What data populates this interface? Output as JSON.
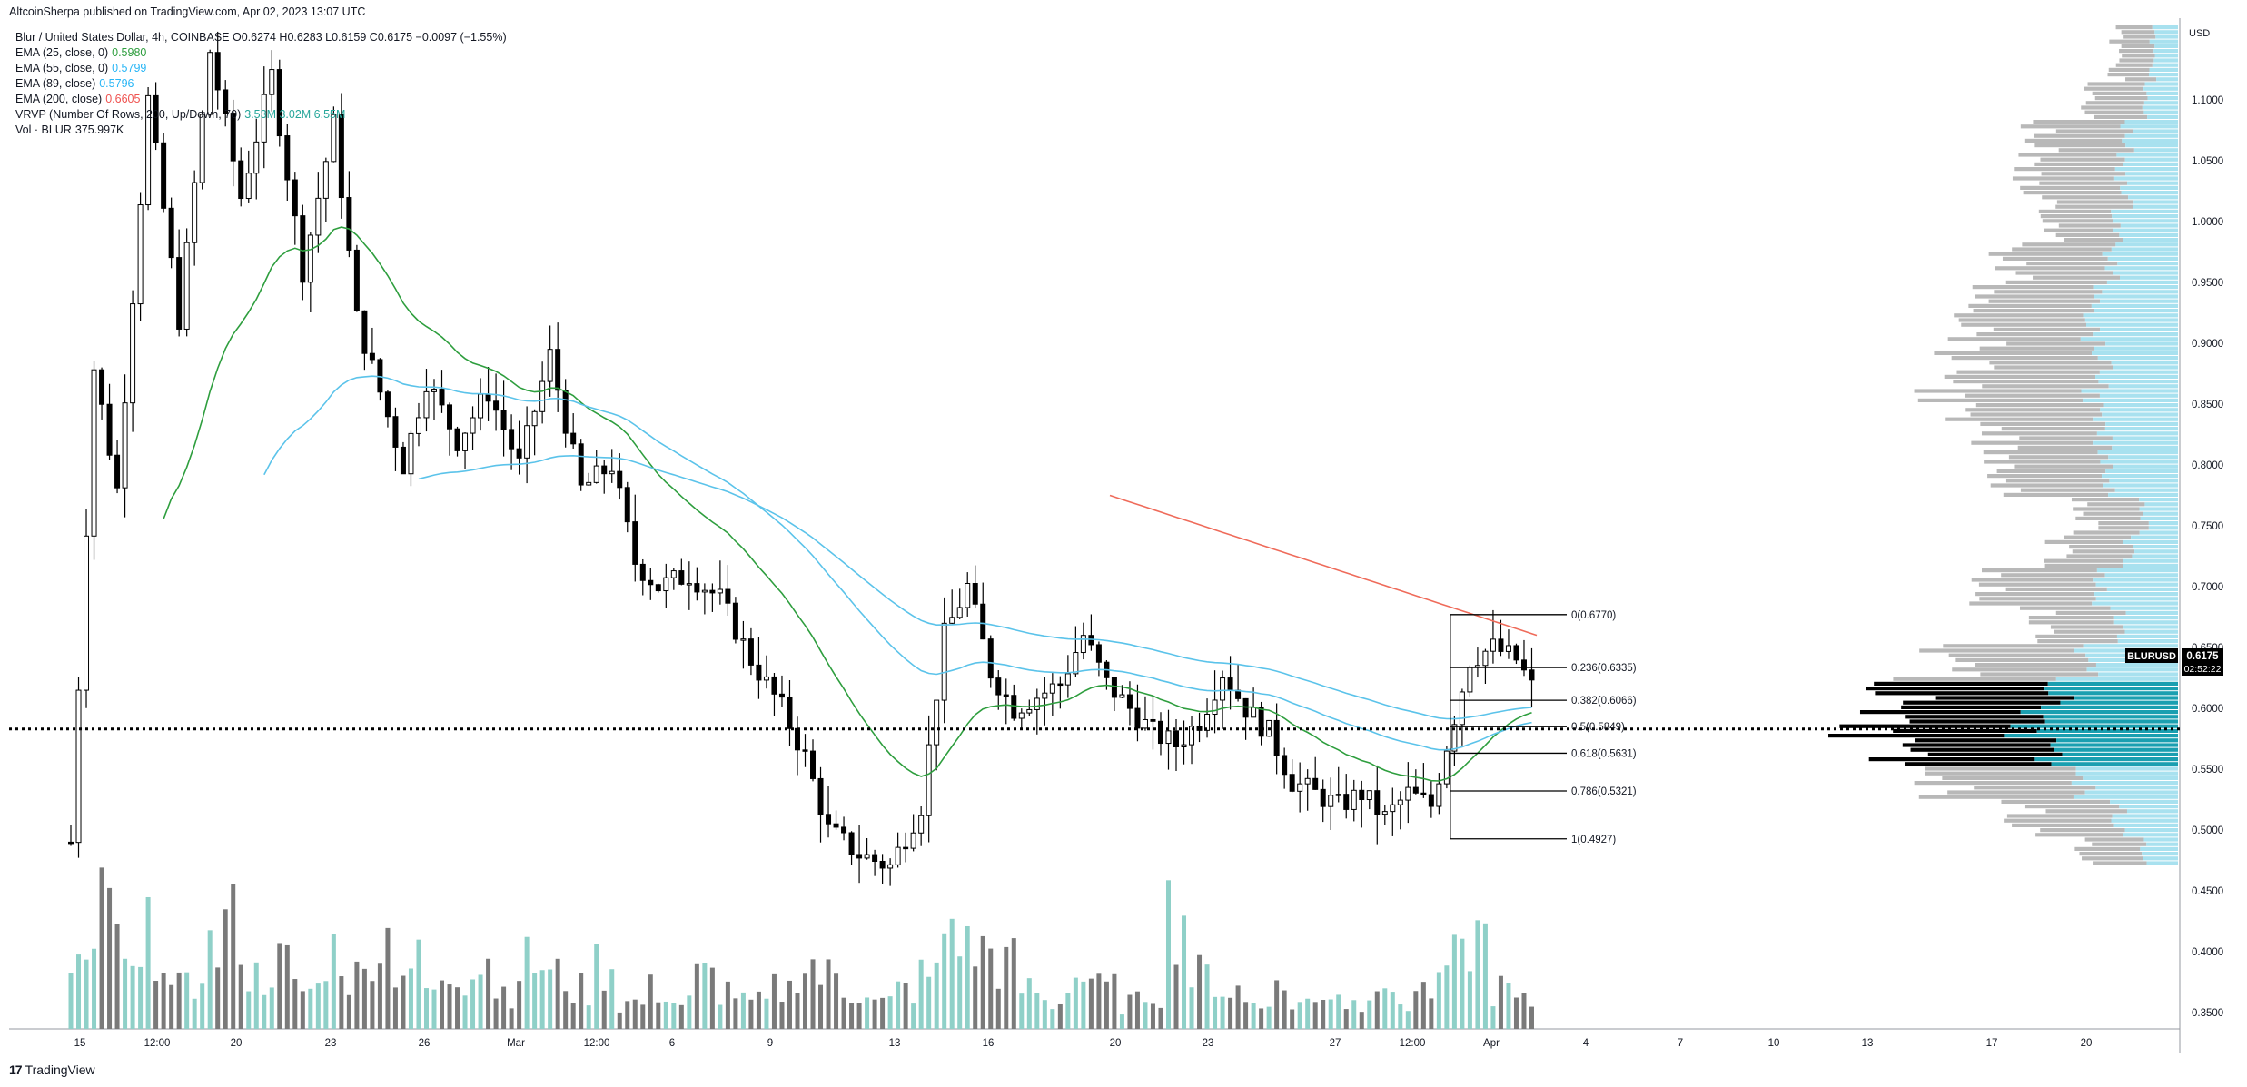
{
  "header": {
    "published": "AltcoinSherpa published on TradingView.com, Apr 02, 2023 13:07 UTC"
  },
  "legend": {
    "symbol_line": "Blur / United States Dollar, 4h, COINBASE O0.6274 H0.6283 L0.6159 C0.6175 −0.0097 (−1.55%)",
    "indicators": [
      {
        "label": "EMA (25, close, 0)",
        "value": "0.5980",
        "color": "#26a69a"
      },
      {
        "label": "EMA (55, close, 0)",
        "value": "0.5799",
        "color": "#29b6f6"
      },
      {
        "label": "EMA (89, close)",
        "value": "0.5796",
        "color": "#29b6f6"
      },
      {
        "label": "EMA (200, close)",
        "value": "0.6605",
        "color": "#ef5350"
      },
      {
        "label": "VRVP (Number Of Rows, 200, Up/Down, 70)",
        "value": "3.53M  3.02M  6.55M",
        "color": "#26a69a"
      },
      {
        "label": "Vol · BLUR",
        "value": "375.997K",
        "color": "#131722"
      }
    ]
  },
  "price_label": {
    "symbol": "BLURUSD",
    "price": "0.6175",
    "countdown": "02:52:22"
  },
  "colors": {
    "ema25": "#2e9e3e",
    "ema55": "#5bc3ea",
    "ema89": "#5bc3ea",
    "ema200": "#ef6b5a",
    "candle": "#000000",
    "vol_up": "#8fd0c8",
    "vol_down": "#7a7a7a",
    "vp_up": "#a8e1ef",
    "vp_down": "#b8b8b8",
    "vp_value_area_up": "#1a9fb0",
    "vp_value_area_down": "#000000"
  },
  "brand": {
    "name": "TradingView"
  },
  "chart_data": {
    "type": "candlestick",
    "title": "Blur / United States Dollar, 4h, COINBASE",
    "currency": "USD",
    "ylim": [
      0.31,
      1.14
    ],
    "y_ticks": [
      "1.1000",
      "1.0500",
      "1.0000",
      "0.9500",
      "0.9000",
      "0.8500",
      "0.8000",
      "0.7500",
      "0.7000",
      "0.6500",
      "0.6000",
      "0.5500",
      "0.5000",
      "0.4500",
      "0.4000",
      "0.3500"
    ],
    "x_ticks": [
      "15",
      "12:00",
      "20",
      "23",
      "26",
      "Mar",
      "12:00",
      "6",
      "9",
      "13",
      "16",
      "20",
      "23",
      "27",
      "12:00",
      "Apr",
      "4",
      "7",
      "10",
      "13",
      "17",
      "20"
    ],
    "last_price": 0.6175,
    "dotted_level": 0.583,
    "fib_retracement": [
      {
        "label": "0(0.6770)",
        "value": 0.677
      },
      {
        "label": "0.236(0.6335)",
        "value": 0.6335
      },
      {
        "label": "0.382(0.6066)",
        "value": 0.6066
      },
      {
        "label": "0.5(0.5849)",
        "value": 0.5849
      },
      {
        "label": "0.618(0.5631)",
        "value": 0.5631
      },
      {
        "label": "0.786(0.5321)",
        "value": 0.5321
      },
      {
        "label": "1(0.4927)",
        "value": 0.4927
      }
    ],
    "price_path": [
      [
        0,
        0.49
      ],
      [
        3,
        0.88
      ],
      [
        6,
        0.78
      ],
      [
        10,
        1.1
      ],
      [
        14,
        0.92
      ],
      [
        18,
        1.14
      ],
      [
        22,
        1.02
      ],
      [
        26,
        1.12
      ],
      [
        30,
        0.96
      ],
      [
        34,
        1.08
      ],
      [
        37,
        0.92
      ],
      [
        40,
        0.86
      ],
      [
        43,
        0.8
      ],
      [
        46,
        0.87
      ],
      [
        50,
        0.82
      ],
      [
        54,
        0.86
      ],
      [
        58,
        0.8
      ],
      [
        62,
        0.89
      ],
      [
        66,
        0.78
      ],
      [
        70,
        0.8
      ],
      [
        73,
        0.72
      ],
      [
        76,
        0.7
      ],
      [
        80,
        0.71
      ],
      [
        84,
        0.69
      ],
      [
        88,
        0.64
      ],
      [
        92,
        0.6
      ],
      [
        95,
        0.56
      ],
      [
        98,
        0.5
      ],
      [
        102,
        0.48
      ],
      [
        106,
        0.47
      ],
      [
        110,
        0.52
      ],
      [
        113,
        0.66
      ],
      [
        116,
        0.7
      ],
      [
        119,
        0.63
      ],
      [
        122,
        0.6
      ],
      [
        125,
        0.61
      ],
      [
        128,
        0.62
      ],
      [
        131,
        0.66
      ],
      [
        134,
        0.62
      ],
      [
        137,
        0.6
      ],
      [
        140,
        0.58
      ],
      [
        143,
        0.57
      ],
      [
        146,
        0.59
      ],
      [
        149,
        0.63
      ],
      [
        152,
        0.6
      ],
      [
        155,
        0.58
      ],
      [
        158,
        0.54
      ],
      [
        161,
        0.53
      ],
      [
        164,
        0.52
      ],
      [
        167,
        0.53
      ],
      [
        170,
        0.51
      ],
      [
        173,
        0.53
      ],
      [
        176,
        0.52
      ],
      [
        178,
        0.57
      ],
      [
        181,
        0.64
      ],
      [
        184,
        0.65
      ],
      [
        187,
        0.64
      ],
      [
        189,
        0.6175
      ]
    ],
    "volume_path": [
      0.5,
      0.9,
      0.4,
      0.7,
      0.3,
      0.6,
      0.8,
      0.4,
      0.5,
      0.3,
      0.6,
      0.4,
      0.7,
      0.5,
      0.3,
      0.4,
      0.6,
      0.3,
      0.5,
      0.4,
      0.3,
      0.5,
      0.2,
      0.3,
      0.2,
      0.4,
      0.3,
      0.2,
      0.3,
      0.5,
      0.4,
      0.3,
      0.2,
      0.3,
      0.4,
      0.8,
      0.6,
      0.5,
      0.3,
      0.2,
      0.4,
      0.3,
      0.2,
      0.3,
      0.9,
      0.4,
      0.3,
      0.2,
      0.3,
      0.2,
      0.3,
      0.2,
      0.4,
      0.2,
      0.3,
      0.5,
      0.7,
      0.3,
      0.2
    ],
    "vrvp_profile": [
      [
        1.13,
        0.15,
        0.2
      ],
      [
        1.1,
        0.2,
        0.3
      ],
      [
        1.07,
        0.3,
        0.45
      ],
      [
        1.05,
        0.35,
        0.5
      ],
      [
        1.02,
        0.3,
        0.45
      ],
      [
        1.0,
        0.35,
        0.4
      ],
      [
        0.97,
        0.4,
        0.55
      ],
      [
        0.94,
        0.45,
        0.6
      ],
      [
        0.91,
        0.5,
        0.65
      ],
      [
        0.88,
        0.45,
        0.7
      ],
      [
        0.85,
        0.5,
        0.75
      ],
      [
        0.82,
        0.45,
        0.6
      ],
      [
        0.79,
        0.4,
        0.55
      ],
      [
        0.76,
        0.2,
        0.3
      ],
      [
        0.73,
        0.3,
        0.4
      ],
      [
        0.7,
        0.45,
        0.6
      ],
      [
        0.67,
        0.35,
        0.45
      ],
      [
        0.64,
        0.55,
        0.75
      ],
      [
        0.615,
        0.7,
        0.9
      ],
      [
        0.59,
        0.9,
        1.0
      ],
      [
        0.565,
        0.8,
        0.95
      ],
      [
        0.54,
        0.55,
        0.75
      ],
      [
        0.51,
        0.35,
        0.5
      ],
      [
        0.48,
        0.2,
        0.3
      ],
      [
        0.45,
        0.08,
        0.1
      ]
    ]
  }
}
